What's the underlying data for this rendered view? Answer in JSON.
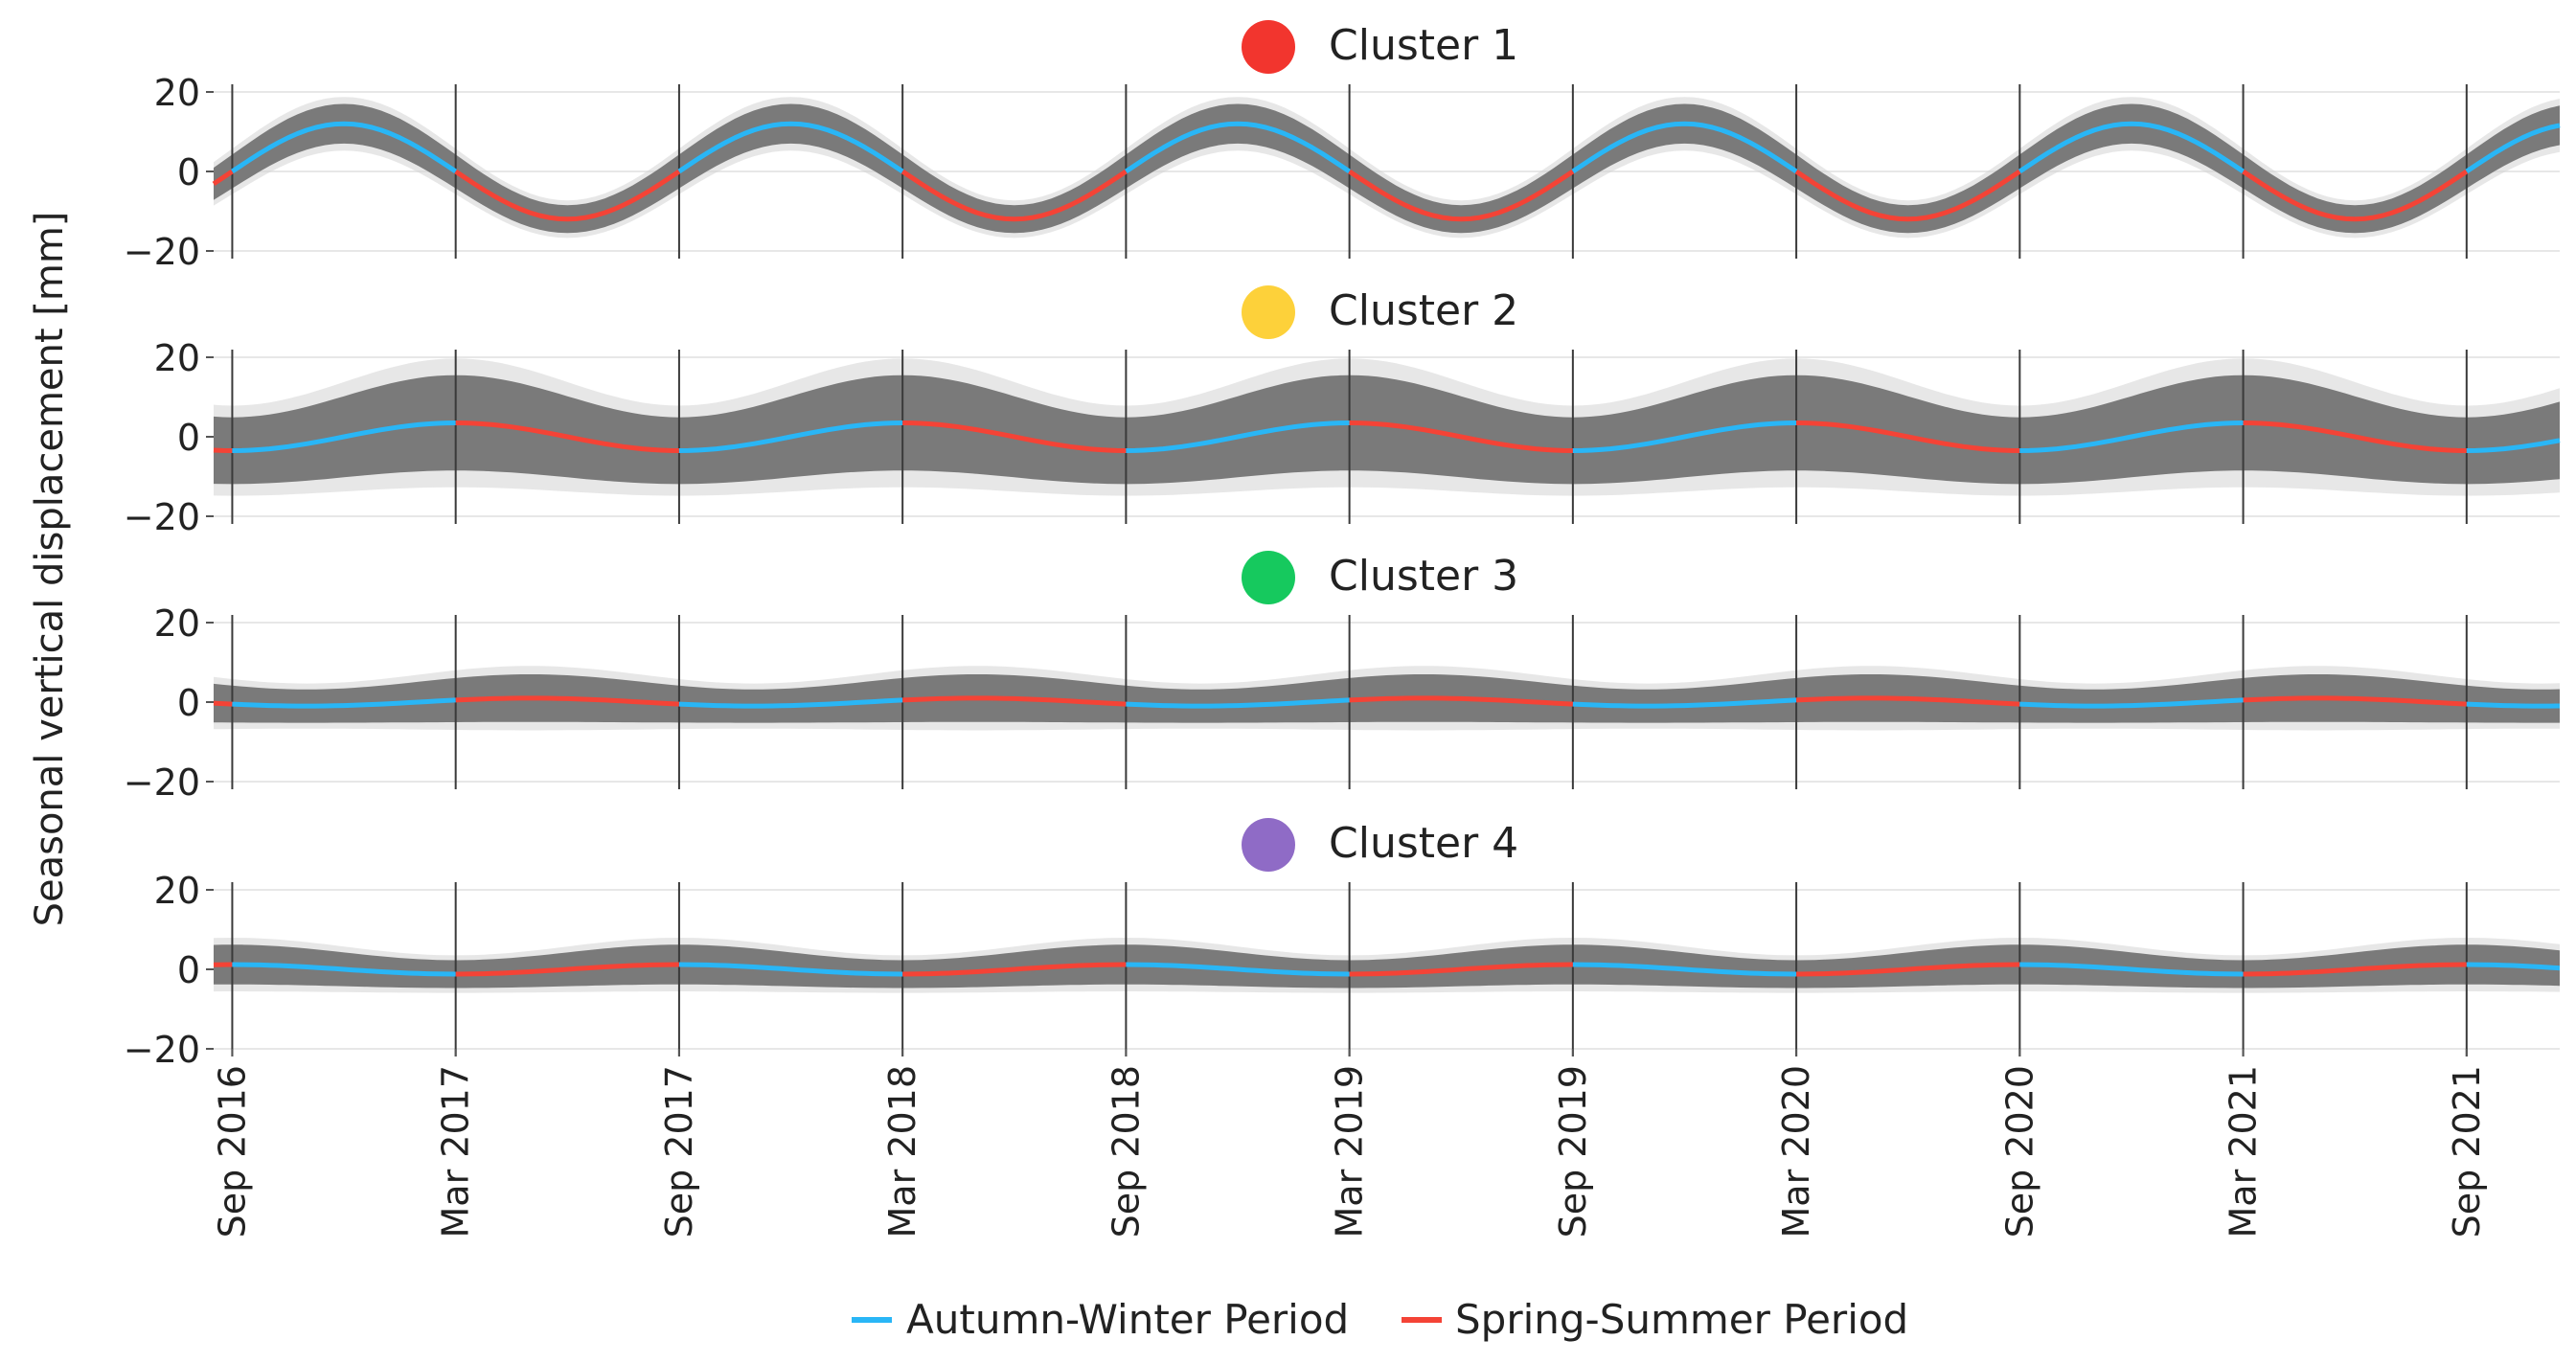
{
  "y_axis_label": "Seasonal vertical displacement [mm]",
  "chart_data": {
    "type": "line",
    "x_ticks": [
      "Sep 2016",
      "Mar 2017",
      "Sep 2017",
      "Mar 2018",
      "Sep 2018",
      "Mar 2019",
      "Sep 2019",
      "Mar 2020",
      "Sep 2020",
      "Mar 2021",
      "Sep 2021"
    ],
    "x_range_months": [
      -0.5,
      62.5
    ],
    "y_range": [
      -20,
      20
    ],
    "y_ticks": [
      "20",
      "0",
      "−20"
    ],
    "season_switch_months": [
      0,
      6,
      12,
      18,
      24,
      30,
      36,
      42,
      48,
      54,
      60
    ],
    "legend": [
      {
        "label": "Autumn-Winter Period",
        "color": "#29b6f6"
      },
      {
        "label": "Spring-Summer Period",
        "color": "#f44336"
      }
    ],
    "band_color": "#7a7a7a",
    "panels": [
      {
        "title": "Cluster 1",
        "color": "#f2352e",
        "mean_amplitude_mm": 12,
        "band_halfwidth_mm": 5,
        "peak_month_in_year": 3
      },
      {
        "title": "Cluster 2",
        "color": "#fdd13a",
        "mean_amplitude_mm": 3.5,
        "band_halfwidth_mm": 12,
        "peak_month_in_year": 6
      },
      {
        "title": "Cluster 3",
        "color": "#16c95e",
        "mean_amplitude_mm": 1,
        "band_halfwidth_mm": 6,
        "peak_month_in_year": 8
      },
      {
        "title": "Cluster 4",
        "color": "#8f6bc6",
        "mean_amplitude_mm": 1.2,
        "band_halfwidth_mm": 5,
        "peak_month_in_year": 0
      }
    ]
  }
}
